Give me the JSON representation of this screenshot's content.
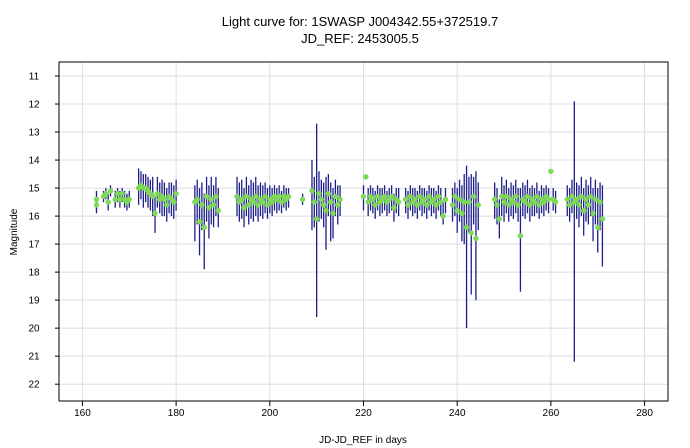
{
  "chart_data": {
    "type": "scatter",
    "title": "Light curve for: 1SWASP J004342.55+372519.7",
    "subtitle": "JD_REF: 2453005.5",
    "xlabel": "JD-JD_REF in days",
    "ylabel": "Magnitude",
    "xlim": [
      155,
      285
    ],
    "ylim": [
      22.6,
      10.5
    ],
    "y_inverted": true,
    "grid": true,
    "x_ticks": [
      160,
      180,
      200,
      220,
      240,
      260,
      280
    ],
    "y_ticks": [
      11,
      12,
      13,
      14,
      15,
      16,
      17,
      18,
      19,
      20,
      21,
      22
    ],
    "colors": {
      "points": "#7ed957",
      "errorbars": "#1c1f8a",
      "grid": "#dddddd"
    },
    "points": [
      {
        "x": 163.0,
        "y": 15.4,
        "lo": 15.1,
        "hi": 15.9
      },
      {
        "x": 163.0,
        "y": 15.6,
        "lo": 15.3,
        "hi": 15.8
      },
      {
        "x": 164.5,
        "y": 15.3,
        "lo": 15.1,
        "hi": 15.5
      },
      {
        "x": 165.0,
        "y": 15.2,
        "lo": 15.0,
        "hi": 15.4
      },
      {
        "x": 165.5,
        "y": 15.5,
        "lo": 15.2,
        "hi": 15.8
      },
      {
        "x": 166.0,
        "y": 15.1,
        "lo": 14.9,
        "hi": 15.3
      },
      {
        "x": 167.0,
        "y": 15.4,
        "lo": 15.1,
        "hi": 15.7
      },
      {
        "x": 167.5,
        "y": 15.2,
        "lo": 15.0,
        "hi": 15.5
      },
      {
        "x": 168.0,
        "y": 15.4,
        "lo": 15.1,
        "hi": 15.7
      },
      {
        "x": 168.5,
        "y": 15.2,
        "lo": 15.0,
        "hi": 15.5
      },
      {
        "x": 169.0,
        "y": 15.4,
        "lo": 15.1,
        "hi": 15.7
      },
      {
        "x": 169.5,
        "y": 15.5,
        "lo": 15.2,
        "hi": 15.8
      },
      {
        "x": 170.0,
        "y": 15.4,
        "lo": 15.1,
        "hi": 15.7
      },
      {
        "x": 172.0,
        "y": 15.0,
        "lo": 14.3,
        "hi": 15.6
      },
      {
        "x": 172.5,
        "y": 14.9,
        "lo": 14.4,
        "hi": 15.4
      },
      {
        "x": 173.0,
        "y": 15.0,
        "lo": 14.5,
        "hi": 15.7
      },
      {
        "x": 173.5,
        "y": 15.0,
        "lo": 14.5,
        "hi": 15.5
      },
      {
        "x": 174.0,
        "y": 15.1,
        "lo": 14.6,
        "hi": 15.7
      },
      {
        "x": 174.5,
        "y": 15.2,
        "lo": 14.7,
        "hi": 15.8
      },
      {
        "x": 175.0,
        "y": 15.3,
        "lo": 14.6,
        "hi": 16.0
      },
      {
        "x": 175.5,
        "y": 15.9,
        "lo": 15.3,
        "hi": 16.6
      },
      {
        "x": 176.0,
        "y": 15.2,
        "lo": 14.6,
        "hi": 15.7
      },
      {
        "x": 176.5,
        "y": 15.4,
        "lo": 14.8,
        "hi": 15.9
      },
      {
        "x": 177.0,
        "y": 15.3,
        "lo": 14.7,
        "hi": 16.0
      },
      {
        "x": 177.5,
        "y": 15.4,
        "lo": 14.8,
        "hi": 16.0
      },
      {
        "x": 178.0,
        "y": 15.6,
        "lo": 15.0,
        "hi": 16.2
      },
      {
        "x": 178.5,
        "y": 15.3,
        "lo": 14.8,
        "hi": 15.9
      },
      {
        "x": 179.0,
        "y": 15.4,
        "lo": 14.8,
        "hi": 16.0
      },
      {
        "x": 179.5,
        "y": 15.5,
        "lo": 14.9,
        "hi": 16.1
      },
      {
        "x": 180.0,
        "y": 15.2,
        "lo": 14.7,
        "hi": 15.8
      },
      {
        "x": 184.0,
        "y": 15.5,
        "lo": 14.9,
        "hi": 16.9
      },
      {
        "x": 184.5,
        "y": 15.4,
        "lo": 14.7,
        "hi": 16.3
      },
      {
        "x": 185.0,
        "y": 16.2,
        "lo": 15.0,
        "hi": 17.4
      },
      {
        "x": 185.5,
        "y": 15.6,
        "lo": 14.8,
        "hi": 16.5
      },
      {
        "x": 186.0,
        "y": 16.4,
        "lo": 15.2,
        "hi": 17.9
      },
      {
        "x": 186.5,
        "y": 15.3,
        "lo": 14.6,
        "hi": 16.2
      },
      {
        "x": 187.0,
        "y": 15.7,
        "lo": 14.9,
        "hi": 16.8
      },
      {
        "x": 187.5,
        "y": 15.4,
        "lo": 14.6,
        "hi": 16.3
      },
      {
        "x": 188.0,
        "y": 15.6,
        "lo": 14.9,
        "hi": 16.4
      },
      {
        "x": 188.5,
        "y": 15.3,
        "lo": 14.6,
        "hi": 16.0
      },
      {
        "x": 189.0,
        "y": 15.8,
        "lo": 15.0,
        "hi": 16.4
      },
      {
        "x": 193.0,
        "y": 15.3,
        "lo": 14.6,
        "hi": 16.0
      },
      {
        "x": 193.5,
        "y": 15.5,
        "lo": 14.8,
        "hi": 16.2
      },
      {
        "x": 194.0,
        "y": 15.4,
        "lo": 14.7,
        "hi": 16.1
      },
      {
        "x": 194.5,
        "y": 15.7,
        "lo": 15.0,
        "hi": 16.4
      },
      {
        "x": 195.0,
        "y": 15.3,
        "lo": 14.6,
        "hi": 16.0
      },
      {
        "x": 195.5,
        "y": 15.6,
        "lo": 14.9,
        "hi": 16.3
      },
      {
        "x": 196.0,
        "y": 15.4,
        "lo": 14.7,
        "hi": 16.1
      },
      {
        "x": 196.5,
        "y": 15.5,
        "lo": 14.8,
        "hi": 16.2
      },
      {
        "x": 197.0,
        "y": 15.3,
        "lo": 14.6,
        "hi": 16.0
      },
      {
        "x": 197.5,
        "y": 15.6,
        "lo": 14.9,
        "hi": 16.2
      },
      {
        "x": 198.0,
        "y": 15.4,
        "lo": 14.8,
        "hi": 16.0
      },
      {
        "x": 198.5,
        "y": 15.5,
        "lo": 14.9,
        "hi": 16.1
      },
      {
        "x": 199.0,
        "y": 15.3,
        "lo": 14.8,
        "hi": 15.9
      },
      {
        "x": 199.5,
        "y": 15.6,
        "lo": 15.0,
        "hi": 16.1
      },
      {
        "x": 200.0,
        "y": 15.4,
        "lo": 14.9,
        "hi": 15.9
      },
      {
        "x": 200.5,
        "y": 15.5,
        "lo": 15.0,
        "hi": 16.0
      },
      {
        "x": 201.0,
        "y": 15.3,
        "lo": 14.9,
        "hi": 15.8
      },
      {
        "x": 201.5,
        "y": 15.4,
        "lo": 15.0,
        "hi": 15.9
      },
      {
        "x": 202.0,
        "y": 15.3,
        "lo": 14.9,
        "hi": 15.8
      },
      {
        "x": 202.5,
        "y": 15.5,
        "lo": 15.1,
        "hi": 15.9
      },
      {
        "x": 203.0,
        "y": 15.3,
        "lo": 14.9,
        "hi": 15.7
      },
      {
        "x": 203.5,
        "y": 15.4,
        "lo": 15.0,
        "hi": 15.8
      },
      {
        "x": 204.0,
        "y": 15.3,
        "lo": 15.0,
        "hi": 15.7
      },
      {
        "x": 207.0,
        "y": 15.4,
        "lo": 15.2,
        "hi": 15.6
      },
      {
        "x": 209.0,
        "y": 15.1,
        "lo": 14.0,
        "hi": 16.5
      },
      {
        "x": 209.5,
        "y": 15.5,
        "lo": 14.6,
        "hi": 16.4
      },
      {
        "x": 210.0,
        "y": 16.1,
        "lo": 12.7,
        "hi": 19.6
      },
      {
        "x": 210.5,
        "y": 15.2,
        "lo": 14.4,
        "hi": 16.2
      },
      {
        "x": 211.0,
        "y": 15.4,
        "lo": 14.7,
        "hi": 16.1
      },
      {
        "x": 211.5,
        "y": 15.6,
        "lo": 14.8,
        "hi": 16.4
      },
      {
        "x": 212.0,
        "y": 15.8,
        "lo": 14.6,
        "hi": 17.2
      },
      {
        "x": 212.5,
        "y": 15.2,
        "lo": 14.5,
        "hi": 16.0
      },
      {
        "x": 213.0,
        "y": 15.5,
        "lo": 14.8,
        "hi": 16.9
      },
      {
        "x": 213.5,
        "y": 15.9,
        "lo": 15.0,
        "hi": 16.8
      },
      {
        "x": 214.0,
        "y": 15.3,
        "lo": 14.7,
        "hi": 16.0
      },
      {
        "x": 214.5,
        "y": 15.6,
        "lo": 14.9,
        "hi": 16.3
      },
      {
        "x": 215.0,
        "y": 15.4,
        "lo": 14.9,
        "hi": 16.0
      },
      {
        "x": 220.0,
        "y": 15.3,
        "lo": 14.9,
        "hi": 15.8
      },
      {
        "x": 220.5,
        "y": 14.6,
        "lo": 14.6,
        "hi": 14.6
      },
      {
        "x": 221.0,
        "y": 15.5,
        "lo": 15.0,
        "hi": 16.0
      },
      {
        "x": 221.5,
        "y": 15.3,
        "lo": 14.9,
        "hi": 15.8
      },
      {
        "x": 222.0,
        "y": 15.4,
        "lo": 15.0,
        "hi": 15.9
      },
      {
        "x": 222.5,
        "y": 15.6,
        "lo": 15.1,
        "hi": 16.1
      },
      {
        "x": 223.0,
        "y": 15.3,
        "lo": 14.9,
        "hi": 15.8
      },
      {
        "x": 223.5,
        "y": 15.5,
        "lo": 15.0,
        "hi": 16.0
      },
      {
        "x": 224.0,
        "y": 15.4,
        "lo": 15.0,
        "hi": 15.9
      },
      {
        "x": 224.5,
        "y": 15.3,
        "lo": 14.9,
        "hi": 15.8
      },
      {
        "x": 225.0,
        "y": 15.5,
        "lo": 15.1,
        "hi": 16.0
      },
      {
        "x": 225.5,
        "y": 15.4,
        "lo": 15.0,
        "hi": 15.9
      },
      {
        "x": 226.0,
        "y": 15.3,
        "lo": 14.9,
        "hi": 15.8
      },
      {
        "x": 226.5,
        "y": 15.7,
        "lo": 15.2,
        "hi": 16.2
      },
      {
        "x": 227.0,
        "y": 15.4,
        "lo": 15.0,
        "hi": 15.9
      },
      {
        "x": 227.5,
        "y": 15.5,
        "lo": 15.0,
        "hi": 16.0
      },
      {
        "x": 229.0,
        "y": 15.4,
        "lo": 15.0,
        "hi": 15.9
      },
      {
        "x": 229.5,
        "y": 15.6,
        "lo": 15.1,
        "hi": 16.1
      },
      {
        "x": 230.0,
        "y": 15.3,
        "lo": 14.9,
        "hi": 15.8
      },
      {
        "x": 230.5,
        "y": 15.5,
        "lo": 15.0,
        "hi": 16.0
      },
      {
        "x": 231.0,
        "y": 15.4,
        "lo": 15.0,
        "hi": 15.9
      },
      {
        "x": 231.5,
        "y": 15.6,
        "lo": 15.1,
        "hi": 16.1
      },
      {
        "x": 232.0,
        "y": 15.3,
        "lo": 14.9,
        "hi": 15.8
      },
      {
        "x": 232.5,
        "y": 15.5,
        "lo": 15.0,
        "hi": 16.0
      },
      {
        "x": 233.0,
        "y": 15.4,
        "lo": 15.0,
        "hi": 15.9
      },
      {
        "x": 233.5,
        "y": 15.6,
        "lo": 15.1,
        "hi": 16.1
      },
      {
        "x": 234.0,
        "y": 15.3,
        "lo": 14.9,
        "hi": 15.8
      },
      {
        "x": 234.5,
        "y": 15.5,
        "lo": 15.0,
        "hi": 16.0
      },
      {
        "x": 235.0,
        "y": 15.4,
        "lo": 15.0,
        "hi": 15.9
      },
      {
        "x": 235.5,
        "y": 15.6,
        "lo": 15.1,
        "hi": 16.1
      },
      {
        "x": 236.0,
        "y": 15.3,
        "lo": 14.9,
        "hi": 15.8
      },
      {
        "x": 236.5,
        "y": 15.5,
        "lo": 15.0,
        "hi": 16.0
      },
      {
        "x": 237.0,
        "y": 16.0,
        "lo": 15.5,
        "hi": 16.3
      },
      {
        "x": 237.5,
        "y": 15.4,
        "lo": 15.0,
        "hi": 15.9
      },
      {
        "x": 239.0,
        "y": 15.6,
        "lo": 15.0,
        "hi": 16.2
      },
      {
        "x": 239.5,
        "y": 15.3,
        "lo": 14.8,
        "hi": 16.0
      },
      {
        "x": 240.0,
        "y": 15.8,
        "lo": 15.0,
        "hi": 16.6
      },
      {
        "x": 240.5,
        "y": 15.4,
        "lo": 14.7,
        "hi": 16.2
      },
      {
        "x": 241.0,
        "y": 15.9,
        "lo": 14.9,
        "hi": 16.9
      },
      {
        "x": 241.5,
        "y": 15.5,
        "lo": 14.5,
        "hi": 17.0
      },
      {
        "x": 242.0,
        "y": 16.4,
        "lo": 14.2,
        "hi": 20.0
      },
      {
        "x": 242.5,
        "y": 15.5,
        "lo": 14.6,
        "hi": 16.6
      },
      {
        "x": 243.0,
        "y": 16.6,
        "lo": 14.5,
        "hi": 18.8
      },
      {
        "x": 243.5,
        "y": 15.3,
        "lo": 14.6,
        "hi": 16.3
      },
      {
        "x": 244.0,
        "y": 16.8,
        "lo": 14.4,
        "hi": 19.0
      },
      {
        "x": 244.5,
        "y": 15.6,
        "lo": 14.8,
        "hi": 16.5
      },
      {
        "x": 248.0,
        "y": 15.4,
        "lo": 14.8,
        "hi": 16.1
      },
      {
        "x": 248.5,
        "y": 15.6,
        "lo": 15.0,
        "hi": 16.3
      },
      {
        "x": 249.0,
        "y": 16.1,
        "lo": 15.4,
        "hi": 16.8
      },
      {
        "x": 249.5,
        "y": 15.3,
        "lo": 14.6,
        "hi": 16.0
      },
      {
        "x": 250.0,
        "y": 15.5,
        "lo": 14.9,
        "hi": 16.2
      },
      {
        "x": 250.5,
        "y": 15.3,
        "lo": 14.7,
        "hi": 15.9
      },
      {
        "x": 251.0,
        "y": 15.6,
        "lo": 15.0,
        "hi": 16.2
      },
      {
        "x": 251.5,
        "y": 15.4,
        "lo": 14.8,
        "hi": 16.0
      },
      {
        "x": 252.0,
        "y": 15.5,
        "lo": 14.9,
        "hi": 16.1
      },
      {
        "x": 252.5,
        "y": 15.3,
        "lo": 14.7,
        "hi": 15.9
      },
      {
        "x": 253.0,
        "y": 15.6,
        "lo": 15.0,
        "hi": 16.2
      },
      {
        "x": 253.5,
        "y": 16.7,
        "lo": 15.0,
        "hi": 18.7
      },
      {
        "x": 254.0,
        "y": 15.4,
        "lo": 14.8,
        "hi": 16.0
      },
      {
        "x": 254.5,
        "y": 15.5,
        "lo": 14.9,
        "hi": 16.1
      },
      {
        "x": 255.0,
        "y": 15.3,
        "lo": 14.7,
        "hi": 15.9
      },
      {
        "x": 255.5,
        "y": 15.6,
        "lo": 15.0,
        "hi": 16.2
      },
      {
        "x": 256.0,
        "y": 15.4,
        "lo": 14.9,
        "hi": 16.0
      },
      {
        "x": 256.5,
        "y": 15.5,
        "lo": 15.0,
        "hi": 16.0
      },
      {
        "x": 257.0,
        "y": 15.3,
        "lo": 14.8,
        "hi": 15.9
      },
      {
        "x": 257.5,
        "y": 15.6,
        "lo": 15.1,
        "hi": 16.1
      },
      {
        "x": 258.0,
        "y": 15.4,
        "lo": 14.9,
        "hi": 15.9
      },
      {
        "x": 258.5,
        "y": 15.5,
        "lo": 15.0,
        "hi": 16.0
      },
      {
        "x": 259.0,
        "y": 15.3,
        "lo": 14.9,
        "hi": 15.8
      },
      {
        "x": 259.5,
        "y": 15.4,
        "lo": 15.0,
        "hi": 15.9
      },
      {
        "x": 260.0,
        "y": 14.4,
        "lo": 14.4,
        "hi": 14.4
      },
      {
        "x": 260.5,
        "y": 15.4,
        "lo": 15.0,
        "hi": 15.8
      },
      {
        "x": 261.0,
        "y": 15.5,
        "lo": 15.1,
        "hi": 15.9
      },
      {
        "x": 263.5,
        "y": 15.4,
        "lo": 14.9,
        "hi": 16.0
      },
      {
        "x": 264.0,
        "y": 15.6,
        "lo": 15.0,
        "hi": 16.2
      },
      {
        "x": 264.5,
        "y": 15.3,
        "lo": 14.7,
        "hi": 15.9
      },
      {
        "x": 265.0,
        "y": 15.5,
        "lo": 11.9,
        "hi": 21.2
      },
      {
        "x": 265.5,
        "y": 15.4,
        "lo": 14.8,
        "hi": 16.1
      },
      {
        "x": 266.0,
        "y": 15.6,
        "lo": 14.9,
        "hi": 16.4
      },
      {
        "x": 266.5,
        "y": 15.3,
        "lo": 14.6,
        "hi": 16.0
      },
      {
        "x": 267.0,
        "y": 15.8,
        "lo": 15.0,
        "hi": 16.7
      },
      {
        "x": 267.5,
        "y": 15.4,
        "lo": 14.7,
        "hi": 16.2
      },
      {
        "x": 268.0,
        "y": 15.6,
        "lo": 14.9,
        "hi": 16.3
      },
      {
        "x": 268.5,
        "y": 15.3,
        "lo": 14.6,
        "hi": 16.0
      },
      {
        "x": 269.0,
        "y": 15.9,
        "lo": 15.0,
        "hi": 16.9
      },
      {
        "x": 269.5,
        "y": 15.4,
        "lo": 14.7,
        "hi": 16.3
      },
      {
        "x": 270.0,
        "y": 16.4,
        "lo": 15.0,
        "hi": 17.3
      },
      {
        "x": 270.5,
        "y": 15.5,
        "lo": 14.8,
        "hi": 16.5
      },
      {
        "x": 271.0,
        "y": 16.1,
        "lo": 14.9,
        "hi": 17.8
      }
    ]
  }
}
